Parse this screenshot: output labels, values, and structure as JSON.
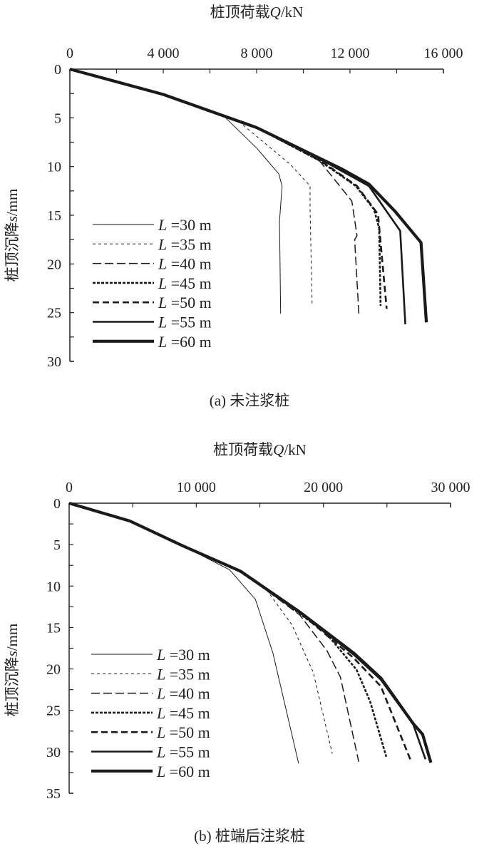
{
  "chart_data": [
    {
      "type": "line",
      "caption": "(a) 未注浆桩",
      "xlabel": {
        "prefix": "桩顶荷载",
        "var": "Q",
        "unit": "/kN"
      },
      "ylabel": {
        "prefix": "桩顶沉降",
        "var": "s",
        "unit": "/mm"
      },
      "xlim": [
        0,
        16000
      ],
      "ylim": [
        0,
        30
      ],
      "y_inverted": true,
      "x_axis_position": "top",
      "xticks": [
        0,
        4000,
        8000,
        12000,
        16000
      ],
      "xtick_labels": [
        "0",
        "4 000",
        "8 000",
        "12 000",
        "16 000"
      ],
      "yticks": [
        0,
        5,
        10,
        15,
        20,
        25,
        30
      ],
      "ytick_labels": [
        "0",
        "5",
        "10",
        "15",
        "20",
        "25",
        "30"
      ],
      "legend_position": "bottom-left",
      "grid": false,
      "series": [
        {
          "name": "L =30 m",
          "points": [
            [
              0,
              0
            ],
            [
              4000,
              2.6
            ],
            [
              6540,
              4.7
            ],
            [
              8000,
              8.1
            ],
            [
              8950,
              10.75
            ],
            [
              9090,
              12
            ],
            [
              8980,
              15.6
            ],
            [
              9030,
              25.1
            ]
          ]
        },
        {
          "name": "L =35 m",
          "points": [
            [
              0,
              0
            ],
            [
              4000,
              2.6
            ],
            [
              7300,
              5.5
            ],
            [
              9450,
              9.8
            ],
            [
              10290,
              12
            ],
            [
              10290,
              14.4
            ],
            [
              10380,
              24.3
            ]
          ]
        },
        {
          "name": "L =40 m",
          "points": [
            [
              0,
              0
            ],
            [
              4000,
              2.6
            ],
            [
              8000,
              6.0
            ],
            [
              10570,
              9.05
            ],
            [
              12080,
              13.55
            ],
            [
              12300,
              17.1
            ],
            [
              12200,
              17.5
            ],
            [
              12380,
              25.1
            ]
          ]
        },
        {
          "name": "L =45 m",
          "points": [
            [
              0,
              0
            ],
            [
              4000,
              2.6
            ],
            [
              8000,
              6.0
            ],
            [
              10700,
              9.4
            ],
            [
              12250,
              12
            ],
            [
              13030,
              14.4
            ],
            [
              13250,
              16.35
            ],
            [
              13310,
              24.3
            ]
          ]
        },
        {
          "name": "L =50 m",
          "points": [
            [
              0,
              0
            ],
            [
              4000,
              2.6
            ],
            [
              8000,
              6.0
            ],
            [
              10800,
              9.5
            ],
            [
              12300,
              12
            ],
            [
              13200,
              14.9
            ],
            [
              13570,
              24.6
            ]
          ]
        },
        {
          "name": "L =55 m",
          "points": [
            [
              0,
              0
            ],
            [
              4000,
              2.6
            ],
            [
              8000,
              6.0
            ],
            [
              11000,
              9.6
            ],
            [
              12810,
              12
            ],
            [
              14150,
              16.6
            ],
            [
              14370,
              26.2
            ]
          ]
        },
        {
          "name": "L =60 m",
          "points": [
            [
              0,
              0
            ],
            [
              4000,
              2.6
            ],
            [
              8000,
              6.0
            ],
            [
              11690,
              10.3
            ],
            [
              12810,
              11.8
            ],
            [
              13930,
              14.6
            ],
            [
              15040,
              17.8
            ],
            [
              15270,
              26
            ]
          ]
        }
      ]
    },
    {
      "type": "line",
      "caption": "(b) 桩端后注浆桩",
      "xlabel": {
        "prefix": "桩顶荷载",
        "var": "Q",
        "unit": "/kN"
      },
      "ylabel": {
        "prefix": "桩顶沉降",
        "var": "s",
        "unit": "/mm"
      },
      "xlim": [
        0,
        30000
      ],
      "ylim": [
        0,
        35
      ],
      "y_inverted": true,
      "x_axis_position": "top",
      "xticks": [
        0,
        10000,
        20000,
        30000
      ],
      "xtick_labels": [
        "0",
        "10 000",
        "20 000",
        "30 000"
      ],
      "yticks": [
        0,
        5,
        10,
        15,
        20,
        25,
        30,
        35
      ],
      "ytick_labels": [
        "0",
        "5",
        "10",
        "15",
        "20",
        "25",
        "30",
        "35"
      ],
      "legend_position": "bottom-left",
      "grid": false,
      "series": [
        {
          "name": "L =30 m",
          "points": [
            [
              0,
              0
            ],
            [
              4780,
              2.15
            ],
            [
              9020,
              5.2
            ],
            [
              12630,
              8.05
            ],
            [
              14650,
              11.6
            ],
            [
              16030,
              18.1
            ],
            [
              18050,
              31.4
            ]
          ]
        },
        {
          "name": "L =35 m",
          "points": [
            [
              0,
              0
            ],
            [
              4780,
              2.15
            ],
            [
              9020,
              5.2
            ],
            [
              13300,
              8.2
            ],
            [
              15600,
              10.6
            ],
            [
              17520,
              14.65
            ],
            [
              19200,
              20.4
            ],
            [
              20700,
              30.2
            ]
          ]
        },
        {
          "name": "L =40 m",
          "points": [
            [
              0,
              0
            ],
            [
              4780,
              2.15
            ],
            [
              9020,
              5.2
            ],
            [
              13480,
              8.2
            ],
            [
              18150,
              13.5
            ],
            [
              20280,
              17.8
            ],
            [
              21340,
              21
            ],
            [
              22780,
              31.2
            ]
          ]
        },
        {
          "name": "L =45 m",
          "points": [
            [
              0,
              0
            ],
            [
              4780,
              2.15
            ],
            [
              9020,
              5.2
            ],
            [
              13480,
              8.2
            ],
            [
              17500,
              12.6
            ],
            [
              20280,
              15.8
            ],
            [
              22610,
              20.1
            ],
            [
              23670,
              23.9
            ],
            [
              24950,
              30.6
            ]
          ]
        },
        {
          "name": "L =50 m",
          "points": [
            [
              0,
              0
            ],
            [
              4780,
              2.15
            ],
            [
              9020,
              5.2
            ],
            [
              13480,
              8.2
            ],
            [
              18000,
              13.0
            ],
            [
              22400,
              18.7
            ],
            [
              24520,
              22.1
            ],
            [
              26860,
              31
            ]
          ]
        },
        {
          "name": "L =55 m",
          "points": [
            [
              0,
              0
            ],
            [
              4780,
              2.15
            ],
            [
              9020,
              5.2
            ],
            [
              13480,
              8.2
            ],
            [
              18200,
              13.2
            ],
            [
              22400,
              18.3
            ],
            [
              24520,
              21.3
            ],
            [
              27070,
              26.7
            ],
            [
              28030,
              30.9
            ]
          ]
        },
        {
          "name": "L =60 m",
          "points": [
            [
              0,
              0
            ],
            [
              4780,
              2.15
            ],
            [
              9020,
              5.2
            ],
            [
              13480,
              8.2
            ],
            [
              18200,
              13.2
            ],
            [
              22400,
              18.1
            ],
            [
              24520,
              21.1
            ],
            [
              27070,
              26.6
            ],
            [
              27810,
              27.9
            ],
            [
              28450,
              31.3
            ]
          ]
        }
      ]
    }
  ]
}
